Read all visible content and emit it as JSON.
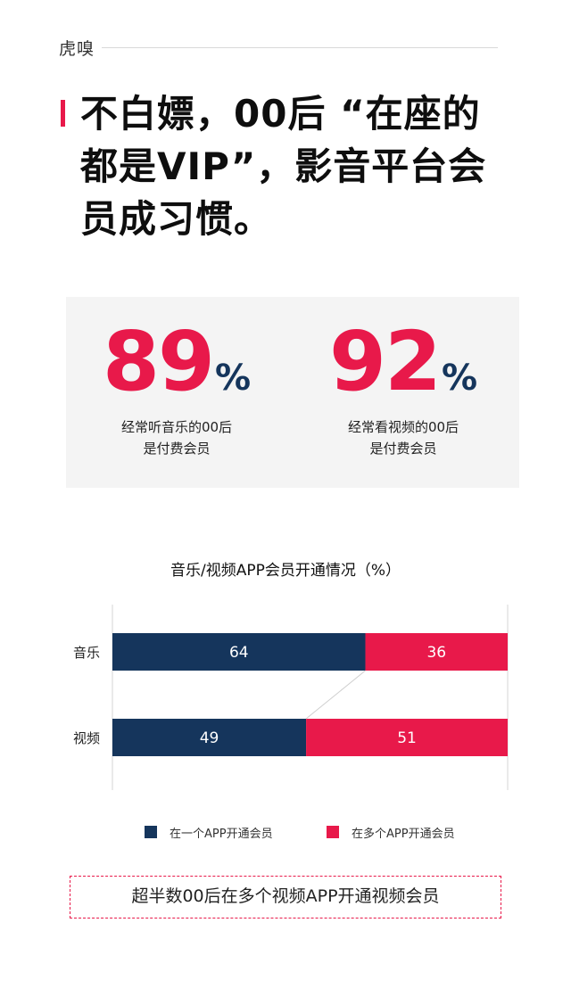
{
  "header": {
    "brand": "虎嗅"
  },
  "title": "不白嫖，00后 “在座的都是VIP”，影音平台会员成习惯。",
  "stats": [
    {
      "number": "89",
      "unit": "%",
      "desc_line1": "经常听音乐的00后",
      "desc_line2": "是付费会员"
    },
    {
      "number": "92",
      "unit": "%",
      "desc_line1": "经常看视频的00后",
      "desc_line2": "是付费会员"
    }
  ],
  "colors": {
    "accent": "#e8194a",
    "navy": "#15355c",
    "panel": "#f4f4f4"
  },
  "chart_data": {
    "type": "bar",
    "orientation": "horizontal",
    "stacked": true,
    "title": "音乐/视频APP会员开通情况（%）",
    "categories": [
      "音乐",
      "视频"
    ],
    "series": [
      {
        "name": "在一个APP开通会员",
        "values": [
          64,
          49
        ],
        "color": "#15355c"
      },
      {
        "name": "在多个APP开通会员",
        "values": [
          36,
          51
        ],
        "color": "#e8194a"
      }
    ],
    "xlim": [
      0,
      100
    ],
    "legend_position": "bottom"
  },
  "callout": "超半数00后在多个视频APP开通视频会员"
}
